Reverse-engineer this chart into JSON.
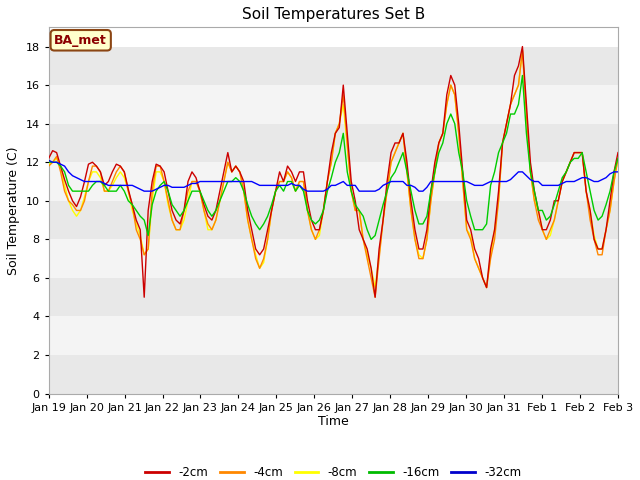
{
  "title": "Soil Temperatures Set B",
  "xlabel": "Time",
  "ylabel": "Soil Temperature (C)",
  "annotation": "BA_met",
  "ylim": [
    0,
    19
  ],
  "yticks": [
    0,
    2,
    4,
    6,
    8,
    10,
    12,
    14,
    16,
    18
  ],
  "xtick_labels": [
    "Jan 19",
    "Jan 20",
    "Jan 21",
    "Jan 22",
    "Jan 23",
    "Jan 24",
    "Jan 25",
    "Jan 26",
    "Jan 27",
    "Jan 28",
    "Jan 29",
    "Jan 30",
    "Jan 31",
    "Feb 1",
    "Feb 2",
    "Feb 3"
  ],
  "legend_labels": [
    "-2cm",
    "-4cm",
    "-8cm",
    "-16cm",
    "-32cm"
  ],
  "legend_colors": [
    "#cc0000",
    "#ff8800",
    "#ffff00",
    "#00bb00",
    "#0000cc"
  ],
  "line_colors": [
    "#cc0000",
    "#ff8800",
    "#ffff00",
    "#00cc00",
    "#0000ff"
  ],
  "title_fontsize": 11,
  "axis_label_fontsize": 9,
  "tick_fontsize": 8,
  "band_colors": [
    "#e8e8e8",
    "#f4f4f4"
  ],
  "t2cm": [
    12.2,
    12.6,
    12.5,
    11.8,
    11.1,
    10.5,
    10.0,
    9.7,
    10.2,
    11.0,
    11.9,
    12.0,
    11.8,
    11.5,
    10.8,
    11.0,
    11.5,
    11.9,
    11.8,
    11.5,
    10.6,
    9.8,
    9.0,
    8.5,
    5.0,
    9.5,
    11.0,
    11.9,
    11.8,
    11.5,
    10.5,
    9.5,
    9.0,
    8.8,
    9.5,
    11.0,
    11.5,
    11.2,
    10.5,
    9.8,
    9.2,
    9.0,
    9.5,
    10.5,
    11.5,
    12.5,
    11.5,
    11.8,
    11.5,
    11.0,
    9.5,
    8.5,
    7.5,
    7.2,
    7.5,
    8.5,
    9.5,
    10.5,
    11.5,
    11.0,
    11.8,
    11.5,
    11.0,
    11.5,
    11.5,
    10.0,
    9.0,
    8.5,
    8.5,
    9.5,
    11.0,
    12.5,
    13.5,
    13.8,
    16.0,
    13.5,
    11.0,
    10.0,
    8.5,
    8.0,
    7.5,
    6.5,
    5.0,
    7.5,
    9.0,
    11.0,
    12.5,
    13.0,
    13.0,
    13.5,
    12.0,
    10.0,
    8.5,
    7.5,
    7.5,
    8.5,
    10.5,
    12.0,
    13.0,
    13.5,
    15.5,
    16.5,
    16.0,
    14.0,
    11.5,
    9.0,
    8.5,
    7.5,
    7.0,
    6.0,
    5.5,
    7.5,
    8.5,
    10.5,
    13.0,
    14.0,
    15.0,
    16.5,
    17.0,
    18.0,
    15.0,
    12.0,
    10.5,
    9.5,
    8.5,
    8.5,
    9.0,
    10.0,
    10.0,
    11.0,
    11.5,
    12.0,
    12.5,
    12.5,
    12.5,
    10.5,
    9.5,
    8.0,
    7.5,
    7.5,
    8.5,
    10.0,
    11.5,
    12.5
  ],
  "t4cm": [
    11.8,
    12.0,
    12.3,
    11.5,
    10.5,
    10.0,
    9.8,
    9.5,
    9.5,
    10.0,
    11.0,
    11.8,
    11.8,
    11.5,
    10.5,
    10.5,
    11.0,
    11.5,
    11.8,
    11.5,
    10.5,
    9.8,
    8.5,
    8.0,
    7.2,
    7.5,
    10.5,
    11.8,
    11.8,
    11.0,
    10.0,
    9.0,
    8.5,
    8.5,
    9.5,
    10.5,
    11.0,
    11.0,
    10.5,
    9.5,
    8.8,
    8.5,
    9.0,
    10.0,
    11.0,
    12.0,
    11.5,
    11.8,
    11.5,
    10.5,
    9.0,
    8.0,
    7.0,
    6.5,
    7.0,
    8.0,
    9.5,
    10.5,
    11.0,
    11.0,
    11.5,
    11.2,
    10.5,
    11.0,
    11.0,
    9.5,
    8.5,
    8.0,
    8.5,
    9.5,
    11.0,
    12.0,
    13.5,
    14.0,
    15.5,
    13.0,
    10.5,
    9.5,
    9.5,
    8.0,
    7.0,
    6.0,
    5.0,
    7.0,
    9.0,
    10.5,
    12.0,
    12.5,
    13.0,
    13.5,
    11.5,
    9.5,
    8.0,
    7.0,
    7.0,
    8.0,
    10.0,
    11.5,
    13.0,
    13.5,
    15.0,
    16.0,
    15.5,
    13.5,
    11.0,
    8.5,
    8.0,
    7.0,
    6.5,
    6.0,
    5.5,
    7.0,
    8.0,
    10.0,
    13.0,
    14.0,
    15.0,
    15.5,
    16.0,
    17.8,
    14.5,
    11.5,
    10.0,
    9.0,
    8.5,
    8.0,
    8.5,
    9.0,
    10.0,
    11.0,
    11.5,
    12.0,
    12.5,
    12.5,
    12.5,
    10.5,
    9.0,
    8.0,
    7.2,
    7.2,
    8.5,
    9.5,
    11.0,
    12.2
  ],
  "t8cm": [
    11.9,
    12.0,
    12.2,
    11.8,
    10.8,
    10.0,
    9.5,
    9.2,
    9.5,
    10.2,
    11.0,
    11.5,
    11.5,
    11.2,
    10.5,
    10.5,
    10.8,
    11.2,
    11.5,
    11.2,
    10.5,
    9.5,
    8.8,
    8.2,
    7.2,
    7.5,
    10.0,
    11.5,
    11.5,
    11.0,
    9.8,
    9.0,
    8.5,
    8.5,
    9.0,
    10.0,
    11.0,
    11.0,
    10.5,
    9.5,
    8.5,
    8.5,
    9.0,
    10.0,
    11.0,
    12.0,
    11.5,
    11.8,
    11.5,
    10.5,
    9.0,
    8.0,
    7.2,
    6.5,
    6.8,
    8.0,
    9.5,
    10.5,
    11.0,
    11.0,
    11.5,
    11.2,
    10.5,
    11.0,
    11.0,
    9.5,
    8.5,
    8.0,
    8.2,
    9.5,
    11.0,
    12.0,
    13.5,
    14.0,
    15.0,
    12.8,
    10.5,
    9.5,
    9.5,
    8.0,
    7.2,
    6.5,
    5.5,
    7.2,
    9.0,
    10.5,
    12.0,
    12.5,
    13.0,
    13.5,
    11.5,
    9.5,
    8.0,
    7.2,
    7.0,
    8.0,
    10.0,
    11.5,
    13.0,
    13.5,
    15.0,
    16.0,
    15.5,
    13.5,
    11.0,
    8.5,
    8.2,
    7.0,
    6.5,
    6.0,
    5.5,
    7.2,
    8.5,
    10.0,
    13.0,
    14.0,
    15.0,
    15.5,
    16.0,
    17.8,
    14.5,
    11.5,
    10.0,
    9.5,
    8.5,
    8.0,
    8.2,
    9.0,
    10.0,
    11.0,
    11.5,
    12.0,
    12.5,
    12.5,
    12.5,
    10.5,
    9.5,
    8.2,
    7.5,
    7.5,
    8.5,
    9.5,
    11.0,
    12.2
  ],
  "t16cm": [
    12.0,
    12.0,
    12.0,
    11.8,
    11.5,
    10.8,
    10.5,
    10.5,
    10.5,
    10.5,
    10.5,
    10.8,
    11.0,
    11.0,
    10.8,
    10.5,
    10.5,
    10.5,
    10.8,
    10.5,
    10.0,
    9.8,
    9.5,
    9.2,
    9.0,
    8.2,
    9.8,
    10.5,
    10.8,
    11.0,
    10.5,
    9.8,
    9.5,
    9.2,
    9.5,
    10.0,
    10.5,
    10.5,
    10.5,
    10.0,
    9.5,
    9.2,
    9.5,
    10.0,
    10.5,
    11.0,
    11.0,
    11.2,
    11.0,
    10.5,
    9.8,
    9.2,
    8.8,
    8.5,
    8.8,
    9.2,
    9.8,
    10.5,
    10.8,
    10.5,
    11.0,
    11.0,
    10.5,
    10.8,
    10.5,
    9.5,
    9.0,
    8.8,
    9.0,
    9.5,
    10.5,
    11.2,
    12.0,
    12.5,
    13.5,
    11.5,
    10.5,
    9.8,
    9.5,
    9.2,
    8.5,
    8.0,
    8.2,
    9.0,
    9.8,
    10.5,
    11.2,
    11.5,
    12.0,
    12.5,
    11.5,
    10.5,
    9.5,
    8.8,
    8.8,
    9.2,
    10.5,
    11.5,
    12.5,
    13.0,
    14.0,
    14.5,
    14.0,
    12.5,
    11.5,
    10.0,
    9.2,
    8.5,
    8.5,
    8.5,
    8.8,
    10.8,
    11.5,
    12.5,
    13.0,
    13.5,
    14.5,
    14.5,
    15.0,
    16.5,
    13.5,
    11.5,
    10.5,
    9.5,
    9.5,
    9.0,
    9.2,
    9.8,
    10.5,
    11.2,
    11.5,
    12.0,
    12.2,
    12.2,
    12.5,
    11.5,
    10.5,
    9.5,
    9.0,
    9.2,
    9.8,
    10.5,
    11.5,
    12.2
  ],
  "t32cm": [
    12.1,
    12.0,
    12.0,
    11.9,
    11.8,
    11.5,
    11.3,
    11.2,
    11.1,
    11.0,
    11.0,
    11.0,
    11.0,
    11.0,
    10.9,
    10.8,
    10.8,
    10.8,
    10.8,
    10.8,
    10.8,
    10.8,
    10.7,
    10.6,
    10.5,
    10.5,
    10.5,
    10.6,
    10.7,
    10.8,
    10.8,
    10.7,
    10.7,
    10.7,
    10.7,
    10.8,
    10.9,
    10.9,
    11.0,
    11.0,
    11.0,
    11.0,
    11.0,
    11.0,
    11.0,
    11.0,
    11.0,
    11.0,
    11.0,
    11.0,
    11.0,
    11.0,
    10.9,
    10.8,
    10.8,
    10.8,
    10.8,
    10.8,
    10.8,
    10.8,
    10.8,
    10.9,
    10.8,
    10.8,
    10.6,
    10.5,
    10.5,
    10.5,
    10.5,
    10.5,
    10.6,
    10.8,
    10.8,
    10.9,
    11.0,
    10.8,
    10.8,
    10.8,
    10.5,
    10.5,
    10.5,
    10.5,
    10.5,
    10.6,
    10.8,
    10.9,
    11.0,
    11.0,
    11.0,
    11.0,
    10.8,
    10.8,
    10.7,
    10.5,
    10.5,
    10.7,
    11.0,
    11.0,
    11.0,
    11.0,
    11.0,
    11.0,
    11.0,
    11.0,
    11.0,
    11.0,
    10.9,
    10.8,
    10.8,
    10.8,
    10.9,
    11.0,
    11.0,
    11.0,
    11.0,
    11.0,
    11.1,
    11.3,
    11.5,
    11.5,
    11.3,
    11.1,
    11.0,
    11.0,
    10.8,
    10.8,
    10.8,
    10.8,
    10.8,
    10.9,
    11.0,
    11.0,
    11.0,
    11.1,
    11.2,
    11.2,
    11.1,
    11.0,
    11.0,
    11.1,
    11.2,
    11.4,
    11.5,
    11.5
  ]
}
